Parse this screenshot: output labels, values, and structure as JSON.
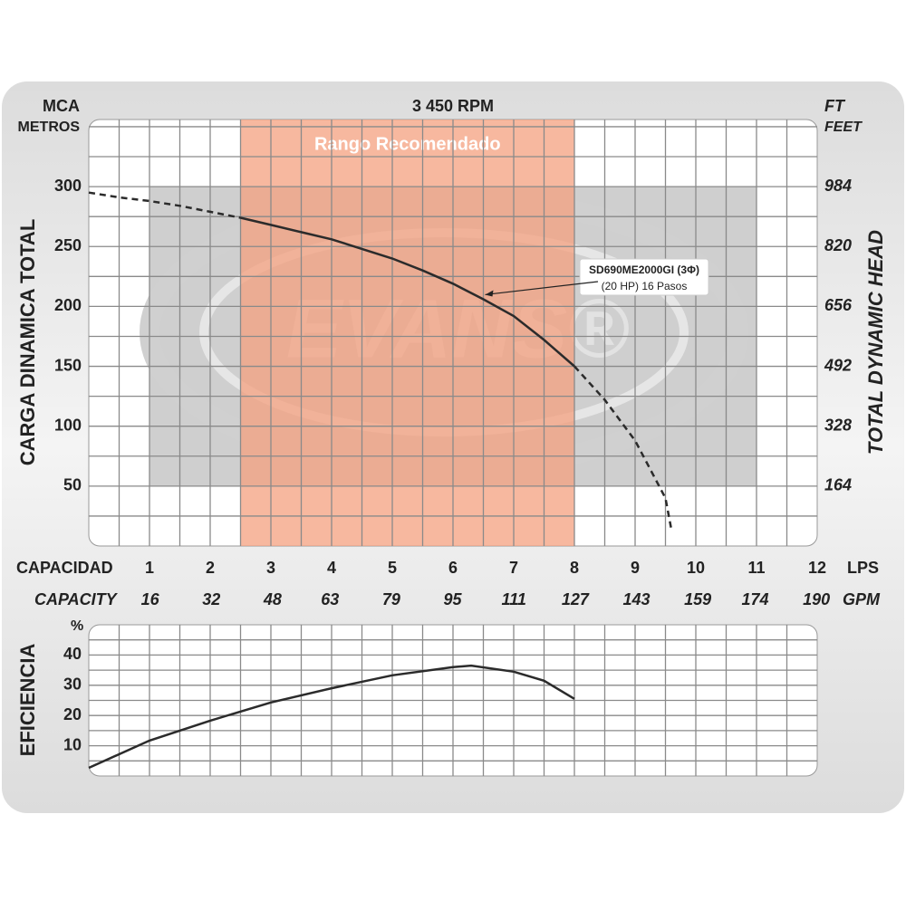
{
  "chart_data": [
    {
      "type": "line",
      "title": "3 450 RPM",
      "y_label_top": "MCA",
      "y_unit": "METROS",
      "y2_label_top": "FT",
      "y2_unit": "FEET",
      "ylabel": "CARGA  DINAMICA  TOTAL",
      "y2label": "TOTAL  DYNAMIC  HEAD",
      "xlabel": "CAPACIDAD",
      "x_unit": "LPS",
      "x2label": "CAPACITY",
      "x2_unit": "GPM",
      "watermark": "EVANS®",
      "recommended": {
        "label": "Rango Recomendado",
        "x": [
          2.5,
          8
        ],
        "color": "#f4a07f"
      },
      "x": [
        0,
        0.5,
        1,
        1.5,
        2,
        2.5,
        3,
        3.5,
        4,
        4.5,
        5,
        5.5,
        6,
        6.5,
        7,
        7.5,
        8,
        8.5,
        9,
        9.5,
        9.6
      ],
      "series": [
        {
          "color": "#2b2b2b",
          "dash": false,
          "values": [
            null,
            null,
            null,
            null,
            null,
            274,
            268,
            262,
            256,
            248,
            240,
            230,
            219,
            206,
            192,
            172,
            150,
            null,
            null,
            null,
            null
          ]
        },
        {
          "color": "#2b2b2b",
          "dash": true,
          "values": [
            295,
            291,
            288,
            284,
            279,
            274,
            null,
            null,
            null,
            null,
            null,
            null,
            null,
            null,
            null,
            null,
            150,
            122,
            88,
            40,
            13
          ]
        }
      ],
      "annotation": [
        "SD690ME2000GI  (3Φ)",
        "(20 HP) 16 Pasos"
      ],
      "xlim": [
        0,
        12
      ],
      "xticks": [
        1,
        2,
        3,
        4,
        5,
        6,
        7,
        8,
        9,
        10,
        11,
        12
      ],
      "x2lim": [
        0,
        190.2
      ],
      "x2ticks": [
        16,
        32,
        48,
        63,
        79,
        95,
        111,
        127,
        143,
        159,
        174,
        190
      ],
      "ylim": [
        0,
        356
      ],
      "yticks": [
        50,
        100,
        150,
        200,
        250,
        300
      ],
      "y2lim": [
        0,
        1168
      ],
      "y2ticks": [
        164,
        328,
        492,
        656,
        820,
        984
      ],
      "grid": true
    },
    {
      "type": "line",
      "ylabel": "EFICIENCIA",
      "y_unit": "%",
      "x": [
        0,
        1,
        2,
        3,
        4,
        5,
        6,
        6.3,
        7,
        7.5,
        8
      ],
      "series": [
        {
          "color": "#2b2b2b",
          "dash": false,
          "values": [
            2.7,
            11.7,
            18.3,
            24.3,
            29,
            33.3,
            36,
            36.5,
            34.5,
            31.5,
            25.5
          ]
        }
      ],
      "xlim": [
        0,
        12
      ],
      "ylim": [
        0,
        50
      ],
      "yticks": [
        10,
        20,
        30,
        40
      ],
      "grid": true
    }
  ]
}
